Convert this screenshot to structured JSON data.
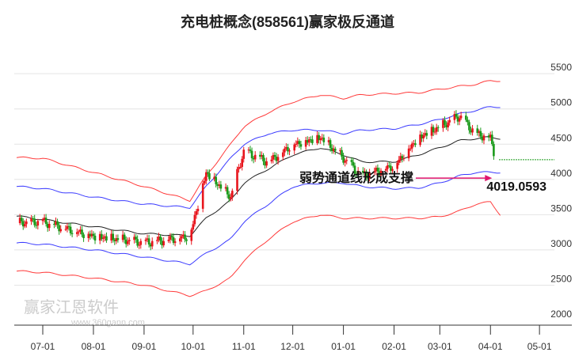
{
  "chart_data": {
    "type": "candlestick-channel",
    "title": "充电桩概念(858561)赢家极反通道",
    "y_ticks": [
      2000,
      2500,
      3000,
      3500,
      4000,
      4500,
      5000,
      5500
    ],
    "ylim": [
      2000,
      5500
    ],
    "x_ticks": [
      "07-01",
      "08-01",
      "09-01",
      "10-01",
      "11-01",
      "12-01",
      "01-01",
      "02-01",
      "03-01",
      "04-01",
      "05-01"
    ],
    "x_tick_days": [
      0,
      31,
      62,
      92,
      123,
      153,
      184,
      215,
      243,
      274,
      304
    ],
    "series_days": [
      -16,
      0,
      31,
      62,
      90,
      100,
      115,
      123,
      138,
      153,
      170,
      184,
      195,
      215,
      230,
      243,
      255,
      265,
      274,
      280
    ],
    "price_close": [
      3380,
      3400,
      3200,
      3100,
      3200,
      4100,
      3750,
      4400,
      4250,
      4500,
      4600,
      4300,
      4050,
      4200,
      4600,
      4750,
      4900,
      4650,
      4600,
      4000
    ],
    "mid_line": [
      3480,
      3430,
      3330,
      3230,
      3200,
      3450,
      3700,
      3950,
      4150,
      4350,
      4450,
      4350,
      4250,
      4250,
      4350,
      4450,
      4550,
      4580,
      4600,
      4580
    ],
    "upper_blue": [
      3900,
      3870,
      3750,
      3650,
      3600,
      3900,
      4300,
      4500,
      4650,
      4700,
      4700,
      4650,
      4700,
      4720,
      4780,
      4850,
      4930,
      4980,
      5030,
      5030
    ],
    "lower_blue": [
      3100,
      3080,
      3000,
      2900,
      2800,
      2950,
      3150,
      3400,
      3650,
      3900,
      3950,
      3950,
      3900,
      3870,
      3880,
      3950,
      4050,
      4100,
      4100,
      4100
    ],
    "upper_red": [
      4310,
      4300,
      4100,
      3900,
      3700,
      4050,
      4500,
      4750,
      4950,
      5100,
      5200,
      5150,
      5200,
      5220,
      5230,
      5280,
      5320,
      5350,
      5400,
      5400
    ],
    "lower_red": [
      2700,
      2680,
      2600,
      2500,
      2350,
      2420,
      2600,
      2850,
      3150,
      3400,
      3500,
      3450,
      3450,
      3450,
      3450,
      3470,
      3550,
      3650,
      3680,
      3500
    ],
    "colors": {
      "up": "#e8141c",
      "down": "#1a9a1a",
      "mid": "#222222",
      "blue": "#3a3aff",
      "red": "#ff3a3a",
      "arrow": "#e0156e"
    },
    "annotation": {
      "text": "弱势通道线形成支撑",
      "value": "4019.0593",
      "day": 275,
      "price": 4019.0593
    }
  },
  "watermark": {
    "name": "赢家江恩软件",
    "url": "www.360gann.com"
  }
}
